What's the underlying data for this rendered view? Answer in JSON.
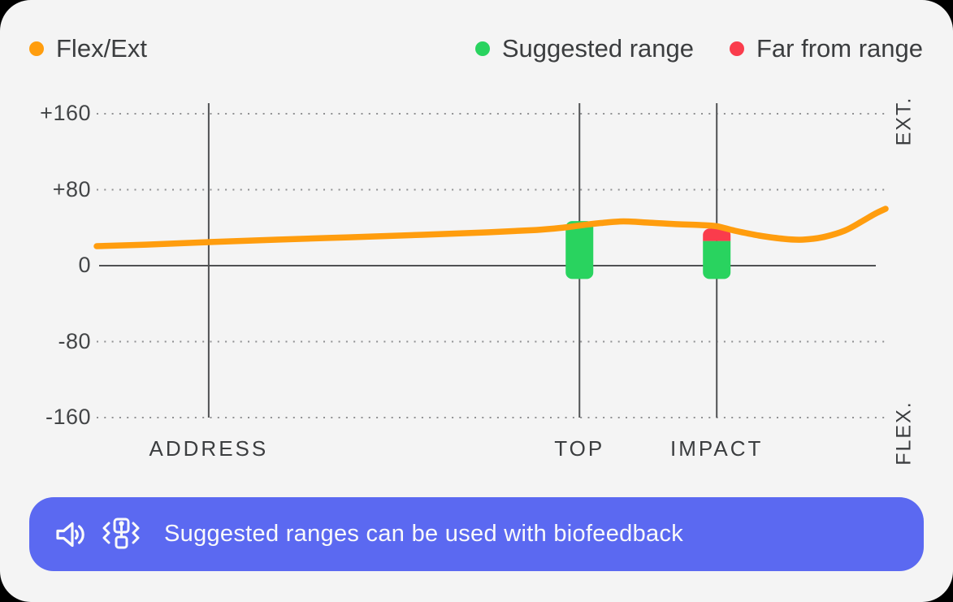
{
  "page": {
    "background": "#000000",
    "card_background": "#f4f4f4"
  },
  "legend": {
    "items": [
      {
        "id": "flex-ext",
        "label": "Flex/Ext",
        "color": "#ff9d0e"
      },
      {
        "id": "suggested-range",
        "label": "Suggested range",
        "color": "#29d35f"
      },
      {
        "id": "far-from-range",
        "label": "Far from range",
        "color": "#fa3c4c"
      }
    ]
  },
  "banner": {
    "text": "Suggested ranges can be used with biofeedback",
    "background": "#5b69f1",
    "icons": [
      "speaker-icon",
      "vibration-icon"
    ]
  },
  "chart_data": {
    "type": "line",
    "title": "",
    "ylabel_top": "EXT.",
    "ylabel_bottom": "FLEX.",
    "ylim": [
      -170,
      170
    ],
    "grid": "dotted-horizontal, solid-vertical-at-phases",
    "legend_position": "top",
    "yticks": [
      {
        "label": "+160",
        "value": 160
      },
      {
        "label": "+80",
        "value": 80
      },
      {
        "label": "0",
        "value": 0
      },
      {
        "label": "-80",
        "value": -80
      },
      {
        "label": "-160",
        "value": -160
      }
    ],
    "phases": [
      {
        "label": "ADDRESS",
        "t": 0.142
      },
      {
        "label": "TOP",
        "t": 0.612
      },
      {
        "label": "IMPACT",
        "t": 0.786
      }
    ],
    "series": [
      {
        "name": "Flex/Ext",
        "color": "#ff9d0e",
        "points": [
          {
            "t": 0.0,
            "v": 20.5
          },
          {
            "t": 0.063,
            "v": 22.2
          },
          {
            "t": 0.142,
            "v": 24.8
          },
          {
            "t": 0.228,
            "v": 27.4
          },
          {
            "t": 0.32,
            "v": 29.9
          },
          {
            "t": 0.413,
            "v": 32.5
          },
          {
            "t": 0.495,
            "v": 35.1
          },
          {
            "t": 0.557,
            "v": 37.6
          },
          {
            "t": 0.593,
            "v": 40.2
          },
          {
            "t": 0.612,
            "v": 42.3
          },
          {
            "t": 0.639,
            "v": 44.9
          },
          {
            "t": 0.668,
            "v": 46.6
          },
          {
            "t": 0.701,
            "v": 45.3
          },
          {
            "t": 0.737,
            "v": 43.6
          },
          {
            "t": 0.765,
            "v": 42.8
          },
          {
            "t": 0.786,
            "v": 41.5
          },
          {
            "t": 0.809,
            "v": 36.8
          },
          {
            "t": 0.84,
            "v": 31.7
          },
          {
            "t": 0.871,
            "v": 28.2
          },
          {
            "t": 0.895,
            "v": 27.4
          },
          {
            "t": 0.92,
            "v": 29.9
          },
          {
            "t": 0.948,
            "v": 36.8
          },
          {
            "t": 0.971,
            "v": 47.1
          },
          {
            "t": 0.987,
            "v": 54.8
          },
          {
            "t": 1.0,
            "v": 59.9
          }
        ]
      }
    ],
    "ranges": [
      {
        "phase": "TOP",
        "t": 0.612,
        "suggested_high": 47,
        "suggested_low": -14,
        "far_high": null
      },
      {
        "phase": "IMPACT",
        "t": 0.786,
        "suggested_high": 26,
        "suggested_low": -14,
        "far_high": 39
      }
    ],
    "range_colors": {
      "suggested": "#29d35f",
      "far": "#fa3c4c"
    }
  }
}
